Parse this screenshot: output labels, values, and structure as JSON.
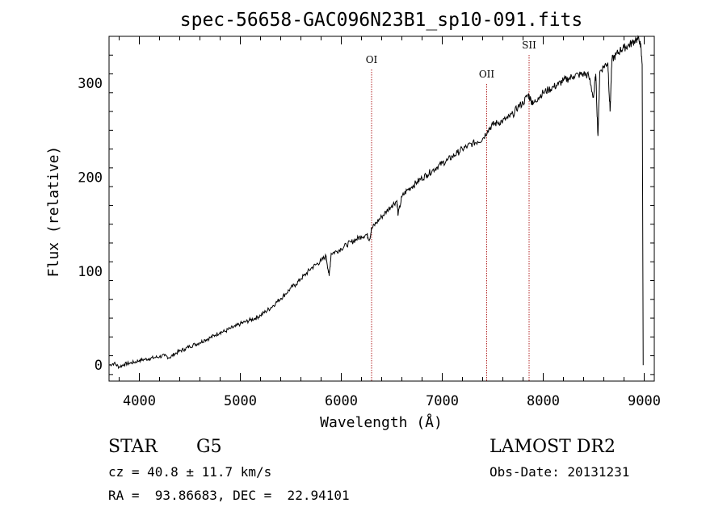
{
  "chart_data": {
    "type": "line",
    "title": "spec-56658-GAC096N23B1_sp10-091.fits",
    "xlabel": "Wavelength (Å)",
    "ylabel": "Flux (relative)",
    "xlim": [
      3700,
      9100
    ],
    "ylim": [
      -17,
      350
    ],
    "xticks": [
      4000,
      5000,
      6000,
      7000,
      8000,
      9000
    ],
    "yticks": [
      0,
      100,
      200,
      300
    ],
    "grid": false,
    "series": [
      {
        "color": "#000000",
        "points": [
          [
            3700,
            0
          ],
          [
            3750,
            2
          ],
          [
            3800,
            -2
          ],
          [
            3850,
            1
          ],
          [
            3900,
            2
          ],
          [
            3950,
            3
          ],
          [
            4000,
            5
          ],
          [
            4050,
            6
          ],
          [
            4100,
            7
          ],
          [
            4150,
            8
          ],
          [
            4200,
            9
          ],
          [
            4250,
            10
          ],
          [
            4300,
            8
          ],
          [
            4350,
            12
          ],
          [
            4400,
            15
          ],
          [
            4450,
            17
          ],
          [
            4500,
            20
          ],
          [
            4550,
            22
          ],
          [
            4600,
            24
          ],
          [
            4650,
            27
          ],
          [
            4700,
            29
          ],
          [
            4750,
            32
          ],
          [
            4800,
            35
          ],
          [
            4850,
            36
          ],
          [
            4900,
            39
          ],
          [
            4950,
            41
          ],
          [
            5000,
            44
          ],
          [
            5050,
            46
          ],
          [
            5100,
            48
          ],
          [
            5150,
            50
          ],
          [
            5200,
            53
          ],
          [
            5250,
            57
          ],
          [
            5300,
            61
          ],
          [
            5350,
            66
          ],
          [
            5400,
            71
          ],
          [
            5450,
            76
          ],
          [
            5500,
            82
          ],
          [
            5550,
            86
          ],
          [
            5600,
            92
          ],
          [
            5650,
            97
          ],
          [
            5700,
            103
          ],
          [
            5750,
            107
          ],
          [
            5800,
            111
          ],
          [
            5850,
            116
          ],
          [
            5880,
            95
          ],
          [
            5900,
            119
          ],
          [
            5950,
            121
          ],
          [
            6000,
            124
          ],
          [
            6050,
            128
          ],
          [
            6100,
            131
          ],
          [
            6150,
            134
          ],
          [
            6200,
            137
          ],
          [
            6250,
            139
          ],
          [
            6280,
            134
          ],
          [
            6300,
            145
          ],
          [
            6350,
            152
          ],
          [
            6400,
            158
          ],
          [
            6450,
            164
          ],
          [
            6500,
            170
          ],
          [
            6550,
            175
          ],
          [
            6563,
            160
          ],
          [
            6600,
            179
          ],
          [
            6650,
            186
          ],
          [
            6700,
            190
          ],
          [
            6750,
            195
          ],
          [
            6800,
            199
          ],
          [
            6850,
            203
          ],
          [
            6900,
            207
          ],
          [
            6950,
            211
          ],
          [
            7000,
            215
          ],
          [
            7050,
            218
          ],
          [
            7100,
            222
          ],
          [
            7150,
            226
          ],
          [
            7200,
            230
          ],
          [
            7250,
            233
          ],
          [
            7300,
            236
          ],
          [
            7350,
            238
          ],
          [
            7400,
            241
          ],
          [
            7450,
            250
          ],
          [
            7500,
            256
          ],
          [
            7550,
            258
          ],
          [
            7600,
            260
          ],
          [
            7650,
            263
          ],
          [
            7700,
            267
          ],
          [
            7750,
            275
          ],
          [
            7800,
            279
          ],
          [
            7850,
            288
          ],
          [
            7880,
            282
          ],
          [
            7900,
            278
          ],
          [
            7950,
            285
          ],
          [
            8000,
            290
          ],
          [
            8050,
            293
          ],
          [
            8100,
            296
          ],
          [
            8150,
            299
          ],
          [
            8200,
            303
          ],
          [
            8250,
            305
          ],
          [
            8300,
            308
          ],
          [
            8350,
            309
          ],
          [
            8400,
            310
          ],
          [
            8450,
            308
          ],
          [
            8498,
            285
          ],
          [
            8520,
            310
          ],
          [
            8542,
            244
          ],
          [
            8560,
            312
          ],
          [
            8600,
            318
          ],
          [
            8640,
            322
          ],
          [
            8662,
            270
          ],
          [
            8680,
            325
          ],
          [
            8720,
            330
          ],
          [
            8760,
            335
          ],
          [
            8800,
            338
          ],
          [
            8840,
            340
          ],
          [
            8880,
            343
          ],
          [
            8920,
            347
          ],
          [
            8960,
            345
          ],
          [
            8980,
            320
          ],
          [
            8990,
            0
          ]
        ]
      }
    ],
    "vlines": [
      {
        "label": "OI",
        "x": 6300,
        "color": "#b22222"
      },
      {
        "label": "OII",
        "x": 7440,
        "color": "#b22222"
      },
      {
        "label": "SII",
        "x": 7860,
        "color": "#b22222"
      }
    ]
  },
  "info": {
    "object_class": "STAR",
    "subclass": "G5",
    "survey": "LAMOST DR2",
    "cz": "cz = 40.8 ± 11.7 km/s",
    "obs_date": "Obs-Date: 20131231",
    "radec": "RA =  93.86683, DEC =  22.94101"
  }
}
